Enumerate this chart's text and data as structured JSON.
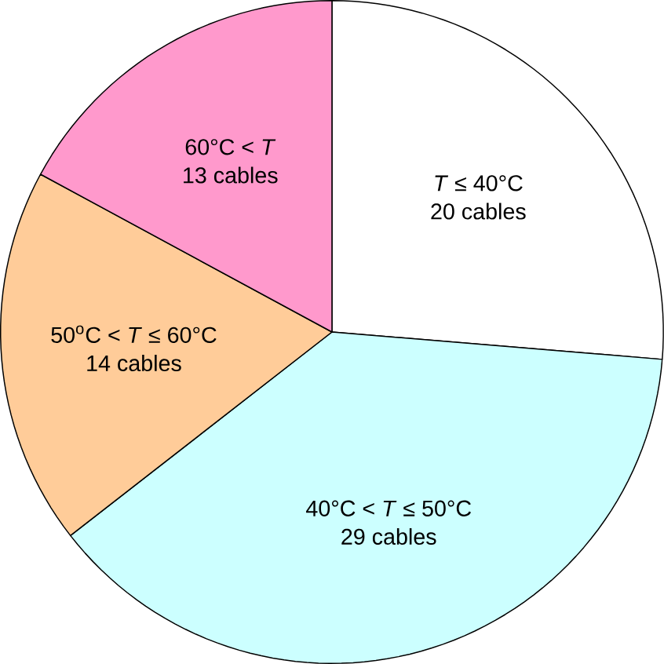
{
  "chart_data": {
    "type": "pie",
    "categories": [
      "*T* ≤ 40°C",
      "40°C < *T* ≤ 50°C",
      "50$^{o}$C < *T* ≤ 60°C",
      "60°C < *T*"
    ],
    "values": [
      20,
      29,
      14,
      13
    ],
    "value_labels": [
      "20 cables",
      "29 cables",
      "14 cables",
      "13 cables"
    ],
    "colors": [
      "#ffffff",
      "#ccffff",
      "#ffcc99",
      "#ff99cc"
    ]
  }
}
